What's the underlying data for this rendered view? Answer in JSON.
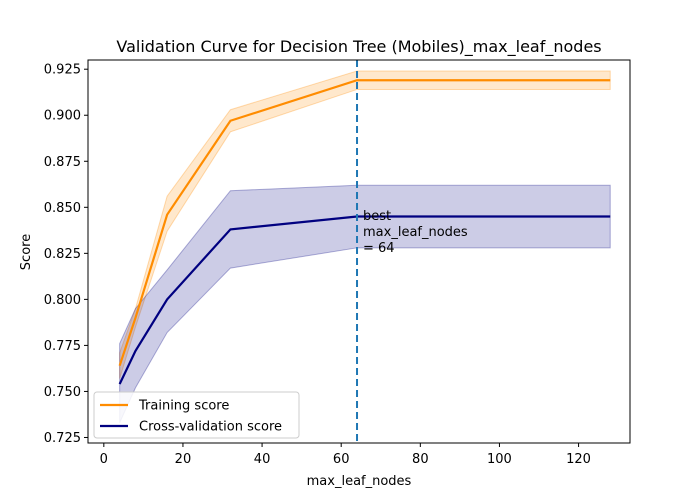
{
  "chart_data": {
    "type": "line",
    "title": "Validation Curve for Decision Tree (Mobiles)_max_leaf_nodes",
    "xlabel": "max_leaf_nodes",
    "ylabel": "Score",
    "xlim": [
      -4,
      133
    ],
    "ylim": [
      0.722,
      0.93
    ],
    "x_ticks": [
      0,
      20,
      40,
      60,
      80,
      100,
      120
    ],
    "y_ticks": [
      0.725,
      0.75,
      0.775,
      0.8,
      0.825,
      0.85,
      0.875,
      0.9,
      0.925
    ],
    "x_tick_labels": [
      "0",
      "20",
      "40",
      "60",
      "80",
      "100",
      "120"
    ],
    "y_tick_labels": [
      "0.725",
      "0.750",
      "0.775",
      "0.800",
      "0.825",
      "0.850",
      "0.875",
      "0.900",
      "0.925"
    ],
    "grid": false,
    "legend_position": "lower-left",
    "x": [
      4,
      8,
      16,
      32,
      64,
      128
    ],
    "series": [
      {
        "name": "Training score",
        "color": "#ff8c00",
        "values": [
          0.764,
          0.79,
          0.846,
          0.897,
          0.919,
          0.919
        ],
        "band_lower": [
          0.757,
          0.785,
          0.837,
          0.891,
          0.914,
          0.914
        ],
        "band_upper": [
          0.771,
          0.795,
          0.856,
          0.903,
          0.924,
          0.924
        ]
      },
      {
        "name": "Cross-validation score",
        "color": "#000080",
        "values": [
          0.754,
          0.772,
          0.8,
          0.838,
          0.845,
          0.845
        ],
        "band_lower": [
          0.733,
          0.752,
          0.782,
          0.817,
          0.828,
          0.828
        ],
        "band_upper": [
          0.776,
          0.795,
          0.816,
          0.859,
          0.862,
          0.862
        ]
      }
    ],
    "reference_line": {
      "x": 64,
      "color": "#1f77b4",
      "style": "dashed",
      "annotation": [
        "best",
        "max_leaf_nodes",
        "= 64"
      ]
    }
  }
}
